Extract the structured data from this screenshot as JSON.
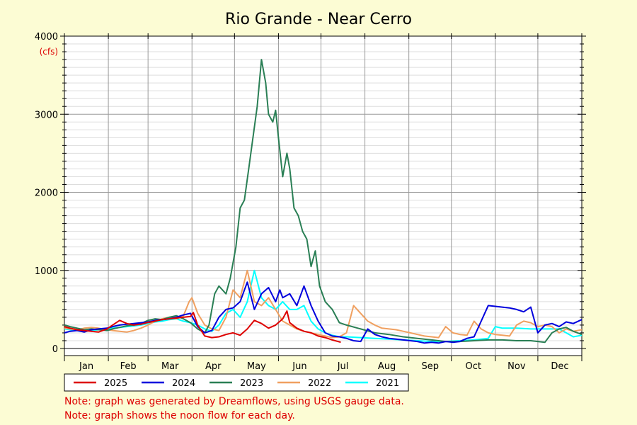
{
  "chart_data": {
    "type": "line",
    "title": "Rio Grande - Near Cerro",
    "ylabel": "(cfs)",
    "xlabel": "",
    "ylim": [
      0,
      4000
    ],
    "yticks": [
      0,
      1000,
      2000,
      3000,
      4000
    ],
    "xlim": [
      1,
      366
    ],
    "months": [
      "Jan",
      "Feb",
      "Mar",
      "Apr",
      "May",
      "Jun",
      "Jul",
      "Aug",
      "Sep",
      "Oct",
      "Nov",
      "Dec"
    ],
    "grid": true,
    "legend_position": "bottom",
    "series": [
      {
        "name": "2025",
        "color": "#dd0000",
        "x": [
          1,
          5,
          10,
          15,
          20,
          25,
          31,
          35,
          40,
          45,
          50,
          55,
          59,
          65,
          70,
          75,
          80,
          85,
          90,
          92,
          95,
          100,
          105,
          110,
          115,
          120,
          125,
          130,
          135,
          140,
          145,
          150,
          155,
          158,
          160,
          165,
          170,
          175,
          180,
          185,
          190,
          196
        ],
        "y": [
          280,
          260,
          240,
          230,
          220,
          210,
          250,
          300,
          360,
          320,
          300,
          310,
          330,
          350,
          370,
          380,
          390,
          400,
          410,
          460,
          300,
          160,
          140,
          150,
          180,
          200,
          170,
          250,
          360,
          320,
          260,
          300,
          380,
          480,
          330,
          260,
          220,
          200,
          160,
          140,
          110,
          80
        ]
      },
      {
        "name": "2024",
        "color": "#0000dd",
        "x": [
          1,
          5,
          10,
          15,
          20,
          25,
          31,
          35,
          40,
          45,
          50,
          55,
          60,
          65,
          70,
          75,
          80,
          85,
          90,
          95,
          100,
          105,
          110,
          115,
          120,
          125,
          130,
          135,
          140,
          145,
          150,
          153,
          155,
          160,
          165,
          170,
          175,
          180,
          185,
          190,
          195,
          200,
          205,
          210,
          215,
          220,
          225,
          230,
          235,
          240,
          245,
          250,
          255,
          260,
          265,
          270,
          275,
          280,
          285,
          290,
          300,
          305,
          310,
          315,
          320,
          325,
          330,
          335,
          340,
          345,
          350,
          355,
          360,
          366
        ],
        "y": [
          200,
          220,
          230,
          210,
          240,
          250,
          260,
          280,
          300,
          310,
          320,
          330,
          340,
          360,
          370,
          380,
          400,
          430,
          450,
          280,
          200,
          230,
          400,
          500,
          520,
          600,
          850,
          500,
          700,
          780,
          600,
          750,
          650,
          700,
          550,
          800,
          550,
          350,
          200,
          160,
          150,
          130,
          100,
          90,
          250,
          180,
          150,
          130,
          120,
          110,
          100,
          90,
          70,
          80,
          70,
          90,
          80,
          90,
          130,
          150,
          550,
          540,
          530,
          520,
          500,
          470,
          530,
          200,
          300,
          320,
          280,
          340,
          320,
          370
        ]
      },
      {
        "name": "2023",
        "color": "#2a7f55",
        "x": [
          1,
          5,
          10,
          15,
          20,
          25,
          31,
          35,
          40,
          45,
          50,
          55,
          60,
          65,
          70,
          75,
          80,
          85,
          90,
          95,
          100,
          103,
          107,
          110,
          115,
          118,
          122,
          125,
          128,
          131,
          134,
          137,
          140,
          143,
          145,
          148,
          150,
          152,
          155,
          158,
          160,
          163,
          166,
          169,
          172,
          175,
          178,
          181,
          185,
          190,
          195,
          200,
          210,
          220,
          230,
          240,
          250,
          260,
          270,
          280,
          290,
          300,
          310,
          320,
          330,
          340,
          345,
          350,
          355,
          360,
          366
        ],
        "y": [
          300,
          280,
          260,
          240,
          250,
          240,
          230,
          250,
          270,
          290,
          300,
          320,
          360,
          380,
          370,
          400,
          420,
          380,
          330,
          250,
          200,
          300,
          700,
          800,
          700,
          900,
          1300,
          1800,
          1900,
          2300,
          2700,
          3100,
          3700,
          3400,
          3000,
          2900,
          3050,
          2700,
          2200,
          2500,
          2300,
          1800,
          1700,
          1500,
          1400,
          1050,
          1250,
          800,
          600,
          500,
          330,
          300,
          250,
          200,
          180,
          150,
          130,
          110,
          90,
          90,
          100,
          110,
          110,
          100,
          100,
          80,
          200,
          250,
          270,
          220,
          180
        ]
      },
      {
        "name": "2022",
        "color": "#f0a060",
        "x": [
          1,
          5,
          10,
          15,
          20,
          25,
          31,
          35,
          40,
          45,
          50,
          55,
          60,
          65,
          70,
          75,
          80,
          85,
          89,
          91,
          95,
          100,
          105,
          110,
          115,
          120,
          125,
          130,
          135,
          140,
          145,
          150,
          155,
          160,
          165,
          170,
          175,
          180,
          185,
          190,
          195,
          200,
          205,
          210,
          215,
          220,
          225,
          230,
          235,
          240,
          245,
          250,
          255,
          260,
          265,
          270,
          275,
          280,
          285,
          290,
          295,
          300,
          305,
          310,
          315,
          320,
          325,
          330,
          335,
          340,
          345,
          350,
          355,
          360,
          366
        ],
        "y": [
          260,
          250,
          240,
          260,
          270,
          260,
          240,
          230,
          220,
          210,
          230,
          260,
          300,
          350,
          380,
          400,
          380,
          420,
          600,
          650,
          450,
          300,
          250,
          230,
          400,
          750,
          650,
          1000,
          600,
          550,
          650,
          500,
          350,
          300,
          250,
          220,
          200,
          180,
          160,
          140,
          150,
          200,
          550,
          450,
          350,
          300,
          260,
          250,
          240,
          220,
          200,
          180,
          160,
          150,
          140,
          280,
          200,
          180,
          170,
          350,
          250,
          200,
          180,
          170,
          160,
          300,
          350,
          330,
          280,
          300,
          280,
          200,
          250,
          220,
          240
        ]
      },
      {
        "name": "2021",
        "color": "#00ffff",
        "x": [
          1,
          5,
          10,
          15,
          20,
          25,
          31,
          35,
          40,
          45,
          50,
          55,
          60,
          65,
          70,
          75,
          80,
          85,
          90,
          95,
          100,
          105,
          110,
          115,
          120,
          125,
          130,
          135,
          140,
          145,
          150,
          155,
          160,
          165,
          170,
          175,
          180,
          185,
          190,
          195,
          200,
          210,
          220,
          230,
          240,
          250,
          260,
          270,
          280,
          290,
          300,
          305,
          310,
          320,
          330,
          340,
          350,
          355,
          360,
          366
        ],
        "y": [
          250,
          240,
          230,
          220,
          230,
          240,
          250,
          260,
          270,
          280,
          290,
          300,
          320,
          340,
          350,
          370,
          380,
          350,
          330,
          300,
          250,
          220,
          300,
          450,
          500,
          400,
          600,
          1000,
          650,
          550,
          500,
          600,
          500,
          500,
          550,
          350,
          250,
          200,
          170,
          150,
          150,
          140,
          130,
          120,
          110,
          100,
          90,
          90,
          100,
          110,
          130,
          280,
          260,
          260,
          250,
          250,
          250,
          200,
          150,
          170
        ]
      }
    ]
  },
  "notes": [
    "Note: graph was generated by Dreamflows, using USGS gauge data.",
    "Note: graph shows the noon flow for each day."
  ]
}
